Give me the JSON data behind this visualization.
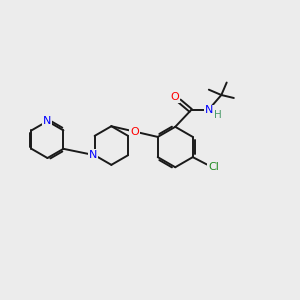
{
  "background_color": "#ececec",
  "bond_color": "#1a1a1a",
  "N_color": "#0000ff",
  "O_color": "#ff0000",
  "Cl_color": "#228b22",
  "H_color": "#4a9a6a",
  "figsize": [
    3.0,
    3.0
  ],
  "dpi": 100,
  "xlim": [
    0,
    10
  ],
  "ylim": [
    0,
    10
  ]
}
